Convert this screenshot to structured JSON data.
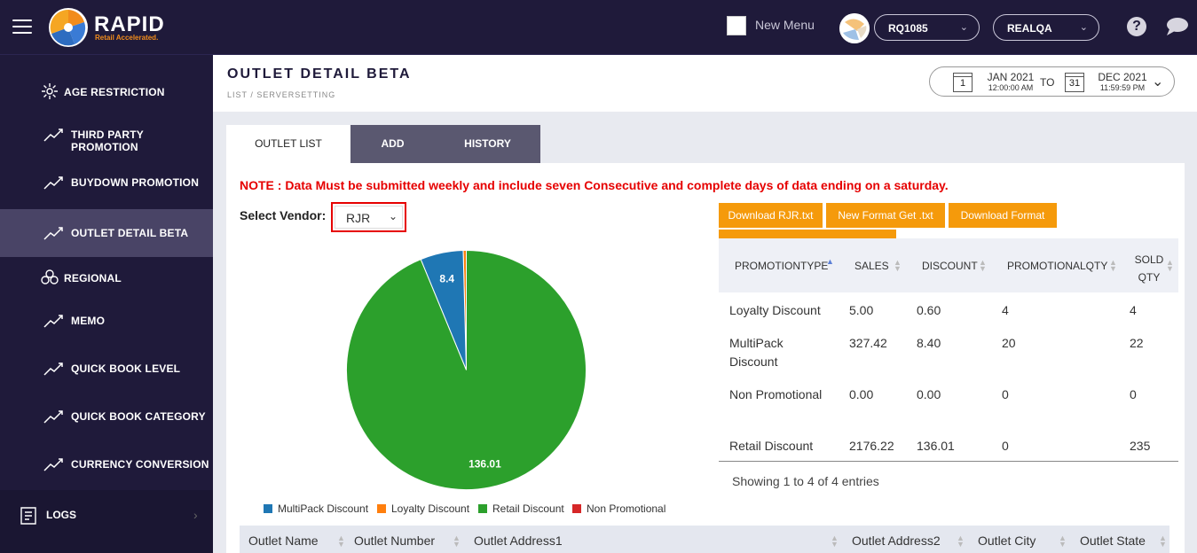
{
  "app": {
    "brand": "RAPID",
    "tagline": "Retail Accelerated.",
    "new_menu_label": "New Menu",
    "store_select": "RQ1085",
    "env_select": "REALQA",
    "icons": {
      "menu": "hamburger-icon",
      "help": "help-icon",
      "chat": "chat-icon",
      "avatar": "avatar"
    }
  },
  "sidebar": {
    "items": [
      {
        "label": "AGE RESTRICTION",
        "icon": "spark-icon"
      },
      {
        "label": "THIRD PARTY PROMOTION",
        "icon": "trend-icon"
      },
      {
        "label": "BUYDOWN PROMOTION",
        "icon": "trend-icon"
      },
      {
        "label": "OUTLET DETAIL BETA",
        "icon": "trend-icon",
        "active": true
      },
      {
        "label": "REGIONAL",
        "icon": "cluster-icon"
      },
      {
        "label": "MEMO",
        "icon": "trend-icon"
      },
      {
        "label": "QUICK BOOK LEVEL",
        "icon": "trend-icon"
      },
      {
        "label": "QUICK BOOK CATEGORY",
        "icon": "trend-icon"
      },
      {
        "label": "CURRENCY CONVERSION",
        "icon": "trend-icon"
      }
    ],
    "logs_label": "LOGS"
  },
  "header": {
    "title": "OUTLET DETAIL BETA",
    "breadcrumb": "LIST / SERVERSETTING",
    "date_from": {
      "day": "1",
      "month": "JAN 2021",
      "time": "12:00:00 AM"
    },
    "date_to_label": "TO",
    "date_to": {
      "day": "31",
      "month": "DEC 2021",
      "time": "11:59:59 PM"
    }
  },
  "tabs": [
    {
      "label": "OUTLET LIST",
      "active": true
    },
    {
      "label": "ADD"
    },
    {
      "label": "HISTORY"
    }
  ],
  "content": {
    "note": "NOTE : Data Must be submitted weekly and include seven Consecutive and complete days of data ending on a saturday.",
    "vendor_label": "Select Vendor:",
    "vendor_value": "RJR",
    "buttons": [
      "Download RJR.txt",
      "New Format Get .txt",
      "Download Format"
    ],
    "summary_table": {
      "columns": [
        "PROMOTIONTYPE",
        "SALES",
        "DISCOUNT",
        "PROMOTIONALQTY",
        "SOLD QTY"
      ],
      "rows": [
        [
          "Loyalty Discount",
          "5.00",
          "0.60",
          "4",
          "4"
        ],
        [
          "MultiPack Discount",
          "327.42",
          "8.40",
          "20",
          "22"
        ],
        [
          "Non Promotional",
          "0.00",
          "0.00",
          "0",
          "0"
        ],
        [
          "Retail Discount",
          "2176.22",
          "136.01",
          "0",
          "235"
        ]
      ],
      "footer": "Showing 1 to 4 of 4 entries"
    },
    "outlet_table_columns": [
      "Outlet Name",
      "Outlet Number",
      "Outlet Address1",
      "Outlet Address2",
      "Outlet City",
      "Outlet State"
    ]
  },
  "chart_data": {
    "type": "pie",
    "categories": [
      "MultiPack Discount",
      "Loyalty Discount",
      "Retail Discount",
      "Non Promotional"
    ],
    "values": [
      8.4,
      0.6,
      136.01,
      0.0
    ],
    "data_labels": [
      "8.4",
      "",
      "136.01",
      ""
    ],
    "colors": [
      "#1f77b4",
      "#ff7f0e",
      "#2ca02c",
      "#d62728"
    ],
    "legend": "bottom"
  }
}
